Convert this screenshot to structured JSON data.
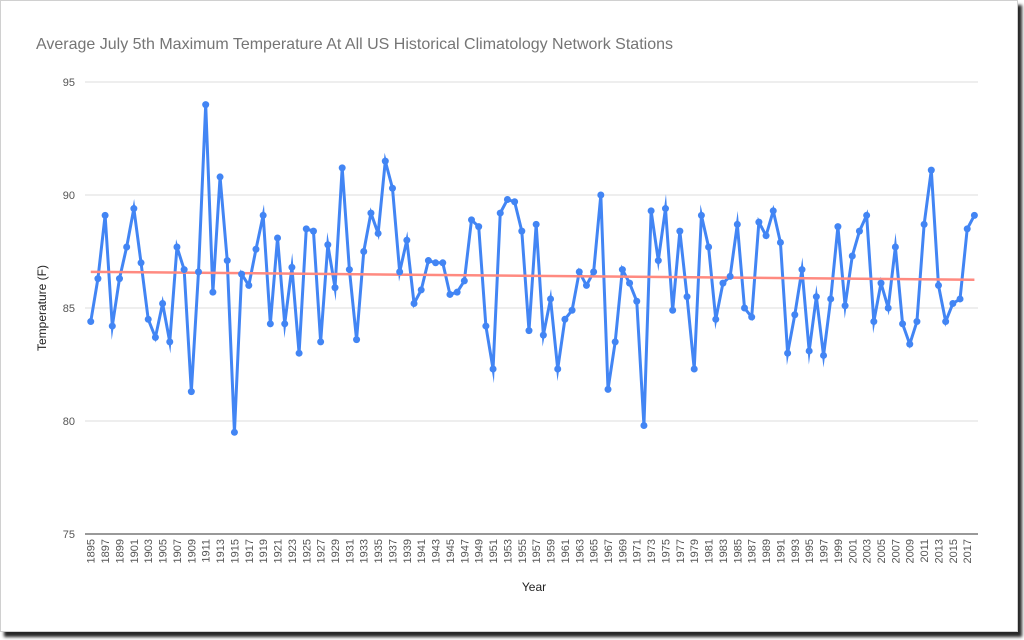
{
  "colors": {
    "series": "#4285f4",
    "trend": "#ff8a80",
    "grid": "#dddddd"
  },
  "chart_data": {
    "type": "line",
    "title": "Average July 5th Maximum Temperature At All US Historical Climatology Network Stations",
    "xlabel": "Year",
    "ylabel": "Temperature (F)",
    "ylim": [
      75,
      95
    ],
    "yticks": [
      75,
      80,
      85,
      90,
      95
    ],
    "xtick_labels": [
      "1895",
      "1897",
      "1899",
      "1901",
      "1903",
      "1905",
      "1907",
      "1909",
      "1911",
      "1913",
      "1915",
      "1917",
      "1919",
      "1921",
      "1923",
      "1925",
      "1927",
      "1929",
      "1931",
      "1933",
      "1935",
      "1937",
      "1939",
      "1941",
      "1943",
      "1945",
      "1947",
      "1949",
      "1951",
      "1953",
      "1955",
      "1957",
      "1959",
      "1961",
      "1963",
      "1965",
      "1967",
      "1969",
      "1971",
      "1973",
      "1975",
      "1977",
      "1979",
      "1981",
      "1983",
      "1985",
      "1987",
      "1989",
      "1991",
      "1993",
      "1995",
      "1997",
      "1999",
      "2001",
      "2003",
      "2005",
      "2007",
      "2009",
      "2011",
      "2013",
      "2015",
      "2017"
    ],
    "grid": true,
    "legend": "none",
    "series": [
      {
        "type": "line",
        "x": [
          1895,
          1896,
          1897,
          1898,
          1899,
          1900,
          1901,
          1902,
          1903,
          1904,
          1905,
          1906,
          1907,
          1908,
          1909,
          1910,
          1911,
          1912,
          1913,
          1914,
          1915,
          1916,
          1917,
          1918,
          1919,
          1920,
          1921,
          1922,
          1923,
          1924,
          1925,
          1926,
          1927,
          1928,
          1929,
          1930,
          1931,
          1932,
          1933,
          1934,
          1935,
          1936,
          1937,
          1938,
          1939,
          1940,
          1941,
          1942,
          1943,
          1944,
          1945,
          1946,
          1947,
          1948,
          1949,
          1950,
          1951,
          1952,
          1953,
          1954,
          1955,
          1956,
          1957,
          1958,
          1959,
          1960,
          1961,
          1962,
          1963,
          1964,
          1965,
          1966,
          1967,
          1968,
          1969,
          1970,
          1971,
          1972,
          1973,
          1974,
          1975,
          1976,
          1977,
          1978,
          1979,
          1980,
          1981,
          1982,
          1983,
          1984,
          1985,
          1986,
          1987,
          1988,
          1989,
          1990,
          1991,
          1992,
          1993,
          1994,
          1995,
          1996,
          1997,
          1998,
          1999,
          2000,
          2001,
          2002,
          2003,
          2004,
          2005,
          2006,
          2007,
          2008,
          2009,
          2010,
          2011,
          2012,
          2013,
          2014,
          2015,
          2016,
          2017,
          2018
        ],
        "values": [
          84.4,
          86.3,
          89.1,
          84.2,
          86.3,
          87.7,
          89.4,
          87.0,
          84.5,
          83.7,
          85.2,
          83.5,
          87.7,
          86.7,
          81.3,
          86.6,
          94.0,
          85.7,
          90.8,
          87.1,
          79.5,
          86.5,
          86.0,
          87.6,
          89.1,
          84.3,
          88.1,
          84.3,
          86.8,
          83.0,
          88.5,
          88.4,
          83.5,
          87.8,
          85.9,
          91.2,
          86.7,
          83.6,
          87.5,
          89.2,
          88.3,
          91.5,
          90.3,
          86.6,
          88.0,
          85.2,
          85.8,
          87.1,
          87.0,
          87.0,
          85.6,
          85.7,
          86.2,
          88.9,
          88.6,
          84.2,
          82.3,
          89.2,
          89.8,
          89.7,
          88.4,
          84.0,
          88.7,
          83.8,
          85.4,
          82.3,
          84.5,
          84.9,
          86.6,
          86.0,
          86.6,
          90.0,
          81.4,
          83.5,
          86.7,
          86.1,
          85.3,
          79.8,
          89.3,
          87.1,
          89.4,
          84.9,
          88.4,
          85.5,
          82.3,
          89.1,
          87.7,
          84.5,
          86.1,
          86.4,
          88.7,
          85.0,
          84.6,
          88.8,
          88.2,
          89.3,
          87.9,
          83.0,
          84.7,
          86.7,
          83.1,
          85.5,
          82.9,
          85.4,
          88.6,
          85.1,
          87.3,
          88.4,
          89.1,
          84.4,
          86.1,
          85.0,
          87.7,
          84.3,
          83.4,
          84.4,
          88.7,
          91.1,
          86.0,
          84.4,
          85.2,
          85.4,
          88.5,
          89.1
        ]
      },
      {
        "type": "trendline",
        "x": [
          1895,
          2018
        ],
        "values": [
          86.6,
          86.25
        ]
      }
    ]
  }
}
